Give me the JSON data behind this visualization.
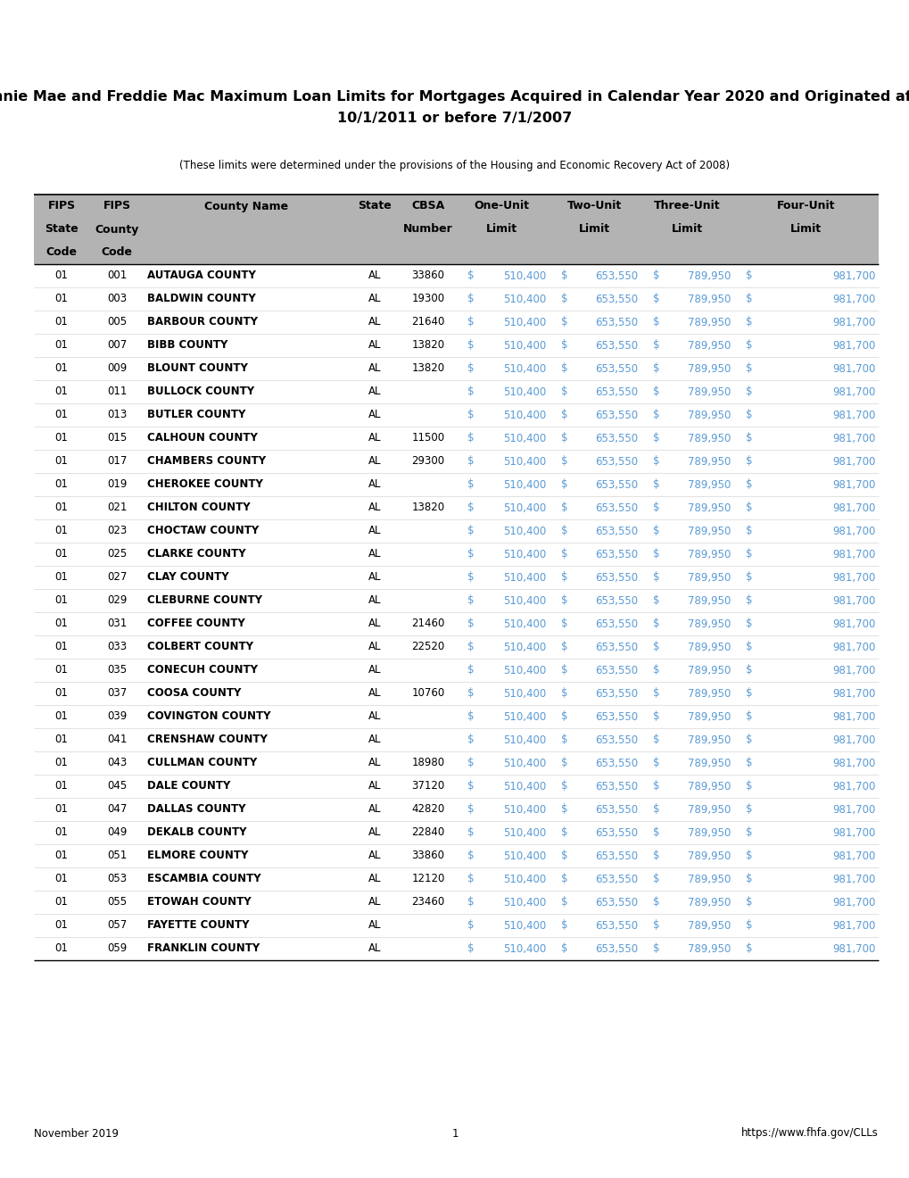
{
  "title_line1": "Fannie Mae and Freddie Mac Maximum Loan Limits for Mortgages Acquired in Calendar Year 2020 and Originated after",
  "title_line2": "10/1/2011 or before 7/1/2007",
  "subtitle": "(These limits were determined under the provisions of the Housing and Economic Recovery Act of 2008)",
  "footer_left": "November 2019",
  "footer_center": "1",
  "footer_right": "https://www.fhfa.gov/CLLs",
  "header_bg": "#b3b3b3",
  "rows": [
    [
      "01",
      "001",
      "AUTAUGA COUNTY",
      "AL",
      "33860",
      "510,400",
      "653,550",
      "789,950",
      "981,700"
    ],
    [
      "01",
      "003",
      "BALDWIN COUNTY",
      "AL",
      "19300",
      "510,400",
      "653,550",
      "789,950",
      "981,700"
    ],
    [
      "01",
      "005",
      "BARBOUR COUNTY",
      "AL",
      "21640",
      "510,400",
      "653,550",
      "789,950",
      "981,700"
    ],
    [
      "01",
      "007",
      "BIBB COUNTY",
      "AL",
      "13820",
      "510,400",
      "653,550",
      "789,950",
      "981,700"
    ],
    [
      "01",
      "009",
      "BLOUNT COUNTY",
      "AL",
      "13820",
      "510,400",
      "653,550",
      "789,950",
      "981,700"
    ],
    [
      "01",
      "011",
      "BULLOCK COUNTY",
      "AL",
      "",
      "510,400",
      "653,550",
      "789,950",
      "981,700"
    ],
    [
      "01",
      "013",
      "BUTLER COUNTY",
      "AL",
      "",
      "510,400",
      "653,550",
      "789,950",
      "981,700"
    ],
    [
      "01",
      "015",
      "CALHOUN COUNTY",
      "AL",
      "11500",
      "510,400",
      "653,550",
      "789,950",
      "981,700"
    ],
    [
      "01",
      "017",
      "CHAMBERS COUNTY",
      "AL",
      "29300",
      "510,400",
      "653,550",
      "789,950",
      "981,700"
    ],
    [
      "01",
      "019",
      "CHEROKEE COUNTY",
      "AL",
      "",
      "510,400",
      "653,550",
      "789,950",
      "981,700"
    ],
    [
      "01",
      "021",
      "CHILTON COUNTY",
      "AL",
      "13820",
      "510,400",
      "653,550",
      "789,950",
      "981,700"
    ],
    [
      "01",
      "023",
      "CHOCTAW COUNTY",
      "AL",
      "",
      "510,400",
      "653,550",
      "789,950",
      "981,700"
    ],
    [
      "01",
      "025",
      "CLARKE COUNTY",
      "AL",
      "",
      "510,400",
      "653,550",
      "789,950",
      "981,700"
    ],
    [
      "01",
      "027",
      "CLAY COUNTY",
      "AL",
      "",
      "510,400",
      "653,550",
      "789,950",
      "981,700"
    ],
    [
      "01",
      "029",
      "CLEBURNE COUNTY",
      "AL",
      "",
      "510,400",
      "653,550",
      "789,950",
      "981,700"
    ],
    [
      "01",
      "031",
      "COFFEE COUNTY",
      "AL",
      "21460",
      "510,400",
      "653,550",
      "789,950",
      "981,700"
    ],
    [
      "01",
      "033",
      "COLBERT COUNTY",
      "AL",
      "22520",
      "510,400",
      "653,550",
      "789,950",
      "981,700"
    ],
    [
      "01",
      "035",
      "CONECUH COUNTY",
      "AL",
      "",
      "510,400",
      "653,550",
      "789,950",
      "981,700"
    ],
    [
      "01",
      "037",
      "COOSA COUNTY",
      "AL",
      "10760",
      "510,400",
      "653,550",
      "789,950",
      "981,700"
    ],
    [
      "01",
      "039",
      "COVINGTON COUNTY",
      "AL",
      "",
      "510,400",
      "653,550",
      "789,950",
      "981,700"
    ],
    [
      "01",
      "041",
      "CRENSHAW COUNTY",
      "AL",
      "",
      "510,400",
      "653,550",
      "789,950",
      "981,700"
    ],
    [
      "01",
      "043",
      "CULLMAN COUNTY",
      "AL",
      "18980",
      "510,400",
      "653,550",
      "789,950",
      "981,700"
    ],
    [
      "01",
      "045",
      "DALE COUNTY",
      "AL",
      "37120",
      "510,400",
      "653,550",
      "789,950",
      "981,700"
    ],
    [
      "01",
      "047",
      "DALLAS COUNTY",
      "AL",
      "42820",
      "510,400",
      "653,550",
      "789,950",
      "981,700"
    ],
    [
      "01",
      "049",
      "DEKALB COUNTY",
      "AL",
      "22840",
      "510,400",
      "653,550",
      "789,950",
      "981,700"
    ],
    [
      "01",
      "051",
      "ELMORE COUNTY",
      "AL",
      "33860",
      "510,400",
      "653,550",
      "789,950",
      "981,700"
    ],
    [
      "01",
      "053",
      "ESCAMBIA COUNTY",
      "AL",
      "12120",
      "510,400",
      "653,550",
      "789,950",
      "981,700"
    ],
    [
      "01",
      "055",
      "ETOWAH COUNTY",
      "AL",
      "23460",
      "510,400",
      "653,550",
      "789,950",
      "981,700"
    ],
    [
      "01",
      "057",
      "FAYETTE COUNTY",
      "AL",
      "",
      "510,400",
      "653,550",
      "789,950",
      "981,700"
    ],
    [
      "01",
      "059",
      "FRANKLIN COUNTY",
      "AL",
      "",
      "510,400",
      "653,550",
      "789,950",
      "981,700"
    ]
  ],
  "data_color": "#5b9bd5",
  "bg_white": "#ffffff",
  "title_fontsize": 11.5,
  "subtitle_fontsize": 8.5,
  "header_fontsize": 9.0,
  "data_fontsize": 8.5,
  "footer_fontsize": 8.5
}
